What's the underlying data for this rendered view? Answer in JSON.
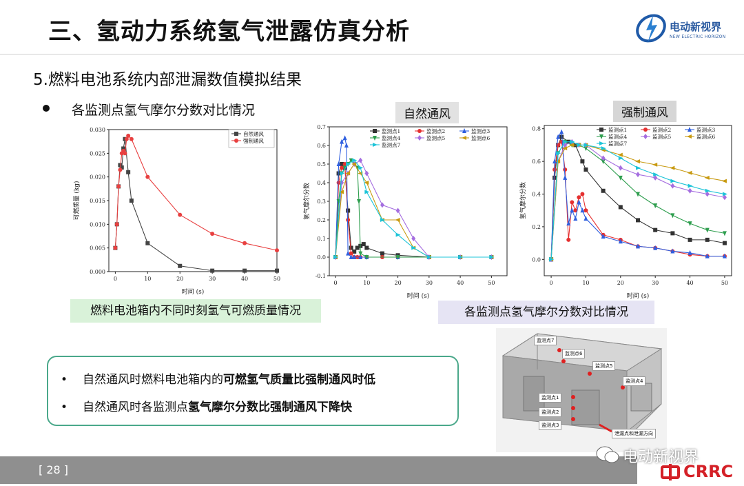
{
  "header": {
    "title": "三、氢动力系统氢气泄露仿真分析",
    "logo_text": "电动新视界",
    "logo_subtext": "NEW ELECTRIC HORIZON"
  },
  "section": {
    "subtitle": "5.燃料电池系统内部泄漏数值模拟结果",
    "bullet": "各监测点氢气摩尔分数对比情况"
  },
  "chart_labels": {
    "natural": "自然通风",
    "forced": "强制通风"
  },
  "captions": {
    "mass": "燃料电池箱内不同时刻氢气可燃质量情况",
    "mole": "各监测点氢气摩尔分数对比情况"
  },
  "summary": {
    "line1_plain": "自然通风时燃料电池箱内的",
    "line1_bold": "可燃氢气质量比强制通风时低",
    "line2_plain": "自然通风时各监测点",
    "line2_bold": "氢气摩尔分数比强制通风下降快",
    "bullet_char": "•"
  },
  "model_labels": {
    "p1": "监测点1",
    "p2": "监测点2",
    "p3": "监测点3",
    "p4": "监测点4",
    "p5": "监测点5",
    "p6": "监测点6",
    "p7": "监测点7",
    "leak": "泄漏点和泄漏方向"
  },
  "footer": {
    "page_number": "[ 28 ]",
    "wechat": "电动新视界",
    "brand": "CRRC"
  },
  "chart_data": [
    {
      "type": "line",
      "ylabel": "可燃质量 (kg)",
      "xlabel": "时间 (s)",
      "xlim": [
        -2,
        50
      ],
      "ylim": [
        0,
        0.03
      ],
      "xticks": [
        0,
        10,
        20,
        30,
        40,
        50
      ],
      "yticks": [
        0.0,
        0.005,
        0.01,
        0.015,
        0.02,
        0.025,
        0.03
      ],
      "ytick_labels": [
        "0.000",
        "0.005",
        "0.010",
        "0.015",
        "0.020",
        "0.025",
        "0.030"
      ],
      "legend": "top-right",
      "series": [
        {
          "name": "自然通风",
          "color": "#444444",
          "marker": "square",
          "x": [
            0,
            0.5,
            1,
            1.5,
            2,
            2.5,
            3,
            4,
            5,
            10,
            20,
            30,
            40,
            50
          ],
          "y": [
            0.005,
            0.01,
            0.018,
            0.0225,
            0.022,
            0.026,
            0.028,
            0.021,
            0.015,
            0.006,
            0.0012,
            0.0002,
            0.0002,
            0.0002
          ]
        },
        {
          "name": "强制通风",
          "color": "#e84040",
          "marker": "circle",
          "x": [
            0,
            0.5,
            1,
            1.5,
            2,
            2.5,
            3,
            3.5,
            4,
            5,
            10,
            20,
            30,
            40,
            50
          ],
          "y": [
            0.005,
            0.01,
            0.018,
            0.0215,
            0.025,
            0.0255,
            0.025,
            0.028,
            0.0287,
            0.028,
            0.02,
            0.012,
            0.008,
            0.006,
            0.0045
          ]
        }
      ]
    },
    {
      "type": "line",
      "title": "自然通风",
      "ylabel": "氢气摩尔分数",
      "xlabel": "时间 (s)",
      "xlim": [
        -2,
        55
      ],
      "ylim": [
        -0.1,
        0.7
      ],
      "xticks": [
        0,
        10,
        20,
        30,
        40,
        50
      ],
      "yticks": [
        -0.1,
        0.0,
        0.1,
        0.2,
        0.3,
        0.4,
        0.5,
        0.6,
        0.7
      ],
      "ytick_labels": [
        "-0.1",
        "0.0",
        "0.1",
        "0.2",
        "0.3",
        "0.4",
        "0.5",
        "0.6",
        "0.7"
      ],
      "legend": "top-right",
      "series": [
        {
          "name": "监测点1",
          "color": "#333333",
          "marker": "square",
          "x": [
            0,
            1,
            2,
            3,
            4,
            5,
            6,
            7,
            8,
            9,
            10,
            15,
            20,
            30,
            40,
            50
          ],
          "y": [
            0,
            0.45,
            0.5,
            0.48,
            0.25,
            0.05,
            0.03,
            0.05,
            0.06,
            0.07,
            0.05,
            0.02,
            0.01,
            0,
            0,
            0
          ]
        },
        {
          "name": "监测点2",
          "color": "#e53030",
          "marker": "circle",
          "x": [
            0,
            1,
            2,
            3,
            4,
            5,
            6,
            7,
            8,
            10,
            15,
            20,
            30,
            40,
            50
          ],
          "y": [
            0,
            0.4,
            0.48,
            0.5,
            0.2,
            0.02,
            0.0,
            0.0,
            0.0,
            0.0,
            0.0,
            0,
            0,
            0,
            0
          ]
        },
        {
          "name": "监测点3",
          "color": "#3060e0",
          "marker": "triangle-up",
          "x": [
            0,
            1,
            2,
            3,
            3.5,
            4,
            5,
            6,
            8,
            10,
            20,
            30,
            40,
            50
          ],
          "y": [
            0,
            0.5,
            0.62,
            0.64,
            0.6,
            0.02,
            0.0,
            0.0,
            0.0,
            0.0,
            0,
            0,
            0,
            0
          ]
        },
        {
          "name": "监测点4",
          "color": "#2e9e4e",
          "marker": "triangle-down",
          "x": [
            0,
            1,
            2,
            3,
            4,
            5,
            6,
            7,
            7.5,
            8,
            10,
            20,
            30,
            40,
            50
          ],
          "y": [
            0,
            0.3,
            0.45,
            0.48,
            0.5,
            0.52,
            0.5,
            0.48,
            0.3,
            0.02,
            0.0,
            0,
            0,
            0,
            0
          ]
        },
        {
          "name": "监测点5",
          "color": "#a56ee0",
          "marker": "diamond",
          "x": [
            0,
            2,
            4,
            6,
            8,
            10,
            15,
            20,
            25,
            30,
            40,
            50
          ],
          "y": [
            0,
            0.4,
            0.45,
            0.5,
            0.52,
            0.45,
            0.28,
            0.25,
            0.1,
            0.0,
            0,
            0
          ]
        },
        {
          "name": "监测点6",
          "color": "#c89a10",
          "marker": "triangle-left",
          "x": [
            0,
            2,
            4,
            6,
            8,
            10,
            15,
            20,
            25,
            30,
            40,
            50
          ],
          "y": [
            0,
            0.35,
            0.45,
            0.5,
            0.45,
            0.4,
            0.2,
            0.2,
            0.05,
            0.0,
            0,
            0
          ]
        },
        {
          "name": "监测点7",
          "color": "#1cc4d8",
          "marker": "triangle-right",
          "x": [
            0,
            2,
            4,
            6,
            8,
            10,
            15,
            20,
            25,
            30,
            40,
            50
          ],
          "y": [
            0,
            0.45,
            0.5,
            0.52,
            0.48,
            0.35,
            0.2,
            0.12,
            0.05,
            0.0,
            0,
            0
          ]
        }
      ]
    },
    {
      "type": "line",
      "title": "强制通风",
      "ylabel": "氢气摩尔分数",
      "xlabel": "时间 (s)",
      "xlim": [
        -2,
        52
      ],
      "ylim": [
        -0.1,
        0.82
      ],
      "xticks": [
        0,
        10,
        20,
        30,
        40,
        50
      ],
      "yticks": [
        0.0,
        0.2,
        0.4,
        0.6,
        0.8
      ],
      "ytick_labels": [
        "0.0",
        "0.2",
        "0.4",
        "0.6",
        "0.8"
      ],
      "legend": "top-right",
      "series": [
        {
          "name": "监测点1",
          "color": "#333333",
          "marker": "square",
          "x": [
            0,
            1,
            2,
            3,
            5,
            7,
            9,
            10,
            15,
            20,
            25,
            30,
            35,
            40,
            45,
            50
          ],
          "y": [
            0,
            0.5,
            0.7,
            0.75,
            0.72,
            0.7,
            0.6,
            0.55,
            0.42,
            0.32,
            0.24,
            0.18,
            0.16,
            0.12,
            0.12,
            0.1
          ]
        },
        {
          "name": "监测点2",
          "color": "#e53030",
          "marker": "circle",
          "x": [
            0,
            1,
            2,
            3,
            4,
            5,
            6,
            7,
            8,
            9,
            10,
            15,
            20,
            25,
            30,
            35,
            40,
            45,
            50
          ],
          "y": [
            0,
            0.55,
            0.7,
            0.72,
            0.55,
            0.12,
            0.35,
            0.3,
            0.38,
            0.4,
            0.3,
            0.15,
            0.12,
            0.08,
            0.07,
            0.05,
            0.03,
            0.02,
            0.02
          ]
        },
        {
          "name": "监测点3",
          "color": "#3060e0",
          "marker": "triangle-up",
          "x": [
            0,
            1,
            2,
            3,
            4,
            5,
            6,
            7,
            8,
            9,
            10,
            15,
            20,
            25,
            30,
            35,
            40,
            45,
            50
          ],
          "y": [
            0,
            0.6,
            0.75,
            0.78,
            0.5,
            0.22,
            0.3,
            0.25,
            0.35,
            0.3,
            0.25,
            0.14,
            0.11,
            0.08,
            0.07,
            0.05,
            0.04,
            0.02,
            0.02
          ]
        },
        {
          "name": "监测点4",
          "color": "#2e9e4e",
          "marker": "triangle-down",
          "x": [
            0,
            2,
            4,
            6,
            8,
            10,
            15,
            20,
            25,
            30,
            35,
            40,
            45,
            50
          ],
          "y": [
            0,
            0.65,
            0.72,
            0.7,
            0.7,
            0.68,
            0.6,
            0.5,
            0.4,
            0.33,
            0.27,
            0.22,
            0.18,
            0.16
          ]
        },
        {
          "name": "监测点5",
          "color": "#a56ee0",
          "marker": "diamond",
          "x": [
            0,
            2,
            4,
            6,
            8,
            10,
            15,
            20,
            25,
            30,
            35,
            40,
            45,
            50
          ],
          "y": [
            0,
            0.6,
            0.7,
            0.72,
            0.7,
            0.7,
            0.62,
            0.56,
            0.52,
            0.5,
            0.45,
            0.42,
            0.4,
            0.38
          ]
        },
        {
          "name": "监测点6",
          "color": "#c89a10",
          "marker": "triangle-left",
          "x": [
            0,
            2,
            4,
            6,
            8,
            10,
            15,
            20,
            25,
            30,
            35,
            40,
            45,
            50
          ],
          "y": [
            0,
            0.6,
            0.68,
            0.7,
            0.7,
            0.7,
            0.67,
            0.64,
            0.6,
            0.58,
            0.56,
            0.53,
            0.5,
            0.48
          ]
        },
        {
          "name": "监测点7",
          "color": "#1cc4d8",
          "marker": "triangle-right",
          "x": [
            0,
            2,
            4,
            6,
            8,
            10,
            15,
            20,
            25,
            30,
            35,
            40,
            45,
            50
          ],
          "y": [
            0,
            0.65,
            0.72,
            0.72,
            0.7,
            0.7,
            0.68,
            0.62,
            0.56,
            0.52,
            0.48,
            0.45,
            0.42,
            0.4
          ]
        }
      ]
    }
  ]
}
